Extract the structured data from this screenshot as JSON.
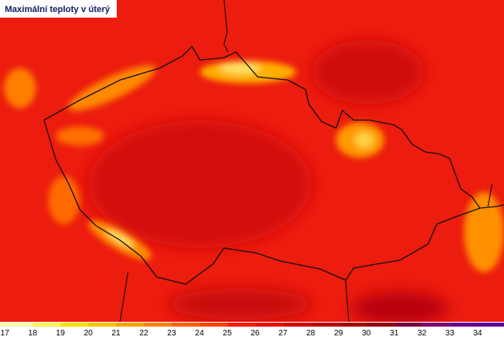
{
  "title": "Maximální teploty v úterý",
  "legend": {
    "ticks": [
      17,
      18,
      19,
      20,
      21,
      22,
      23,
      24,
      25,
      26,
      27,
      28,
      29,
      30,
      31,
      32,
      33,
      34
    ],
    "colors": [
      "#fffbb0",
      "#fff35a",
      "#ffe000",
      "#ffc000",
      "#ffa000",
      "#ff8000",
      "#ff6000",
      "#ff4000",
      "#ff1a00",
      "#ee0a00",
      "#d80000",
      "#c00000",
      "#a80000",
      "#900010",
      "#78003a",
      "#800070",
      "#6a0090",
      "#5a00a0"
    ]
  }
}
